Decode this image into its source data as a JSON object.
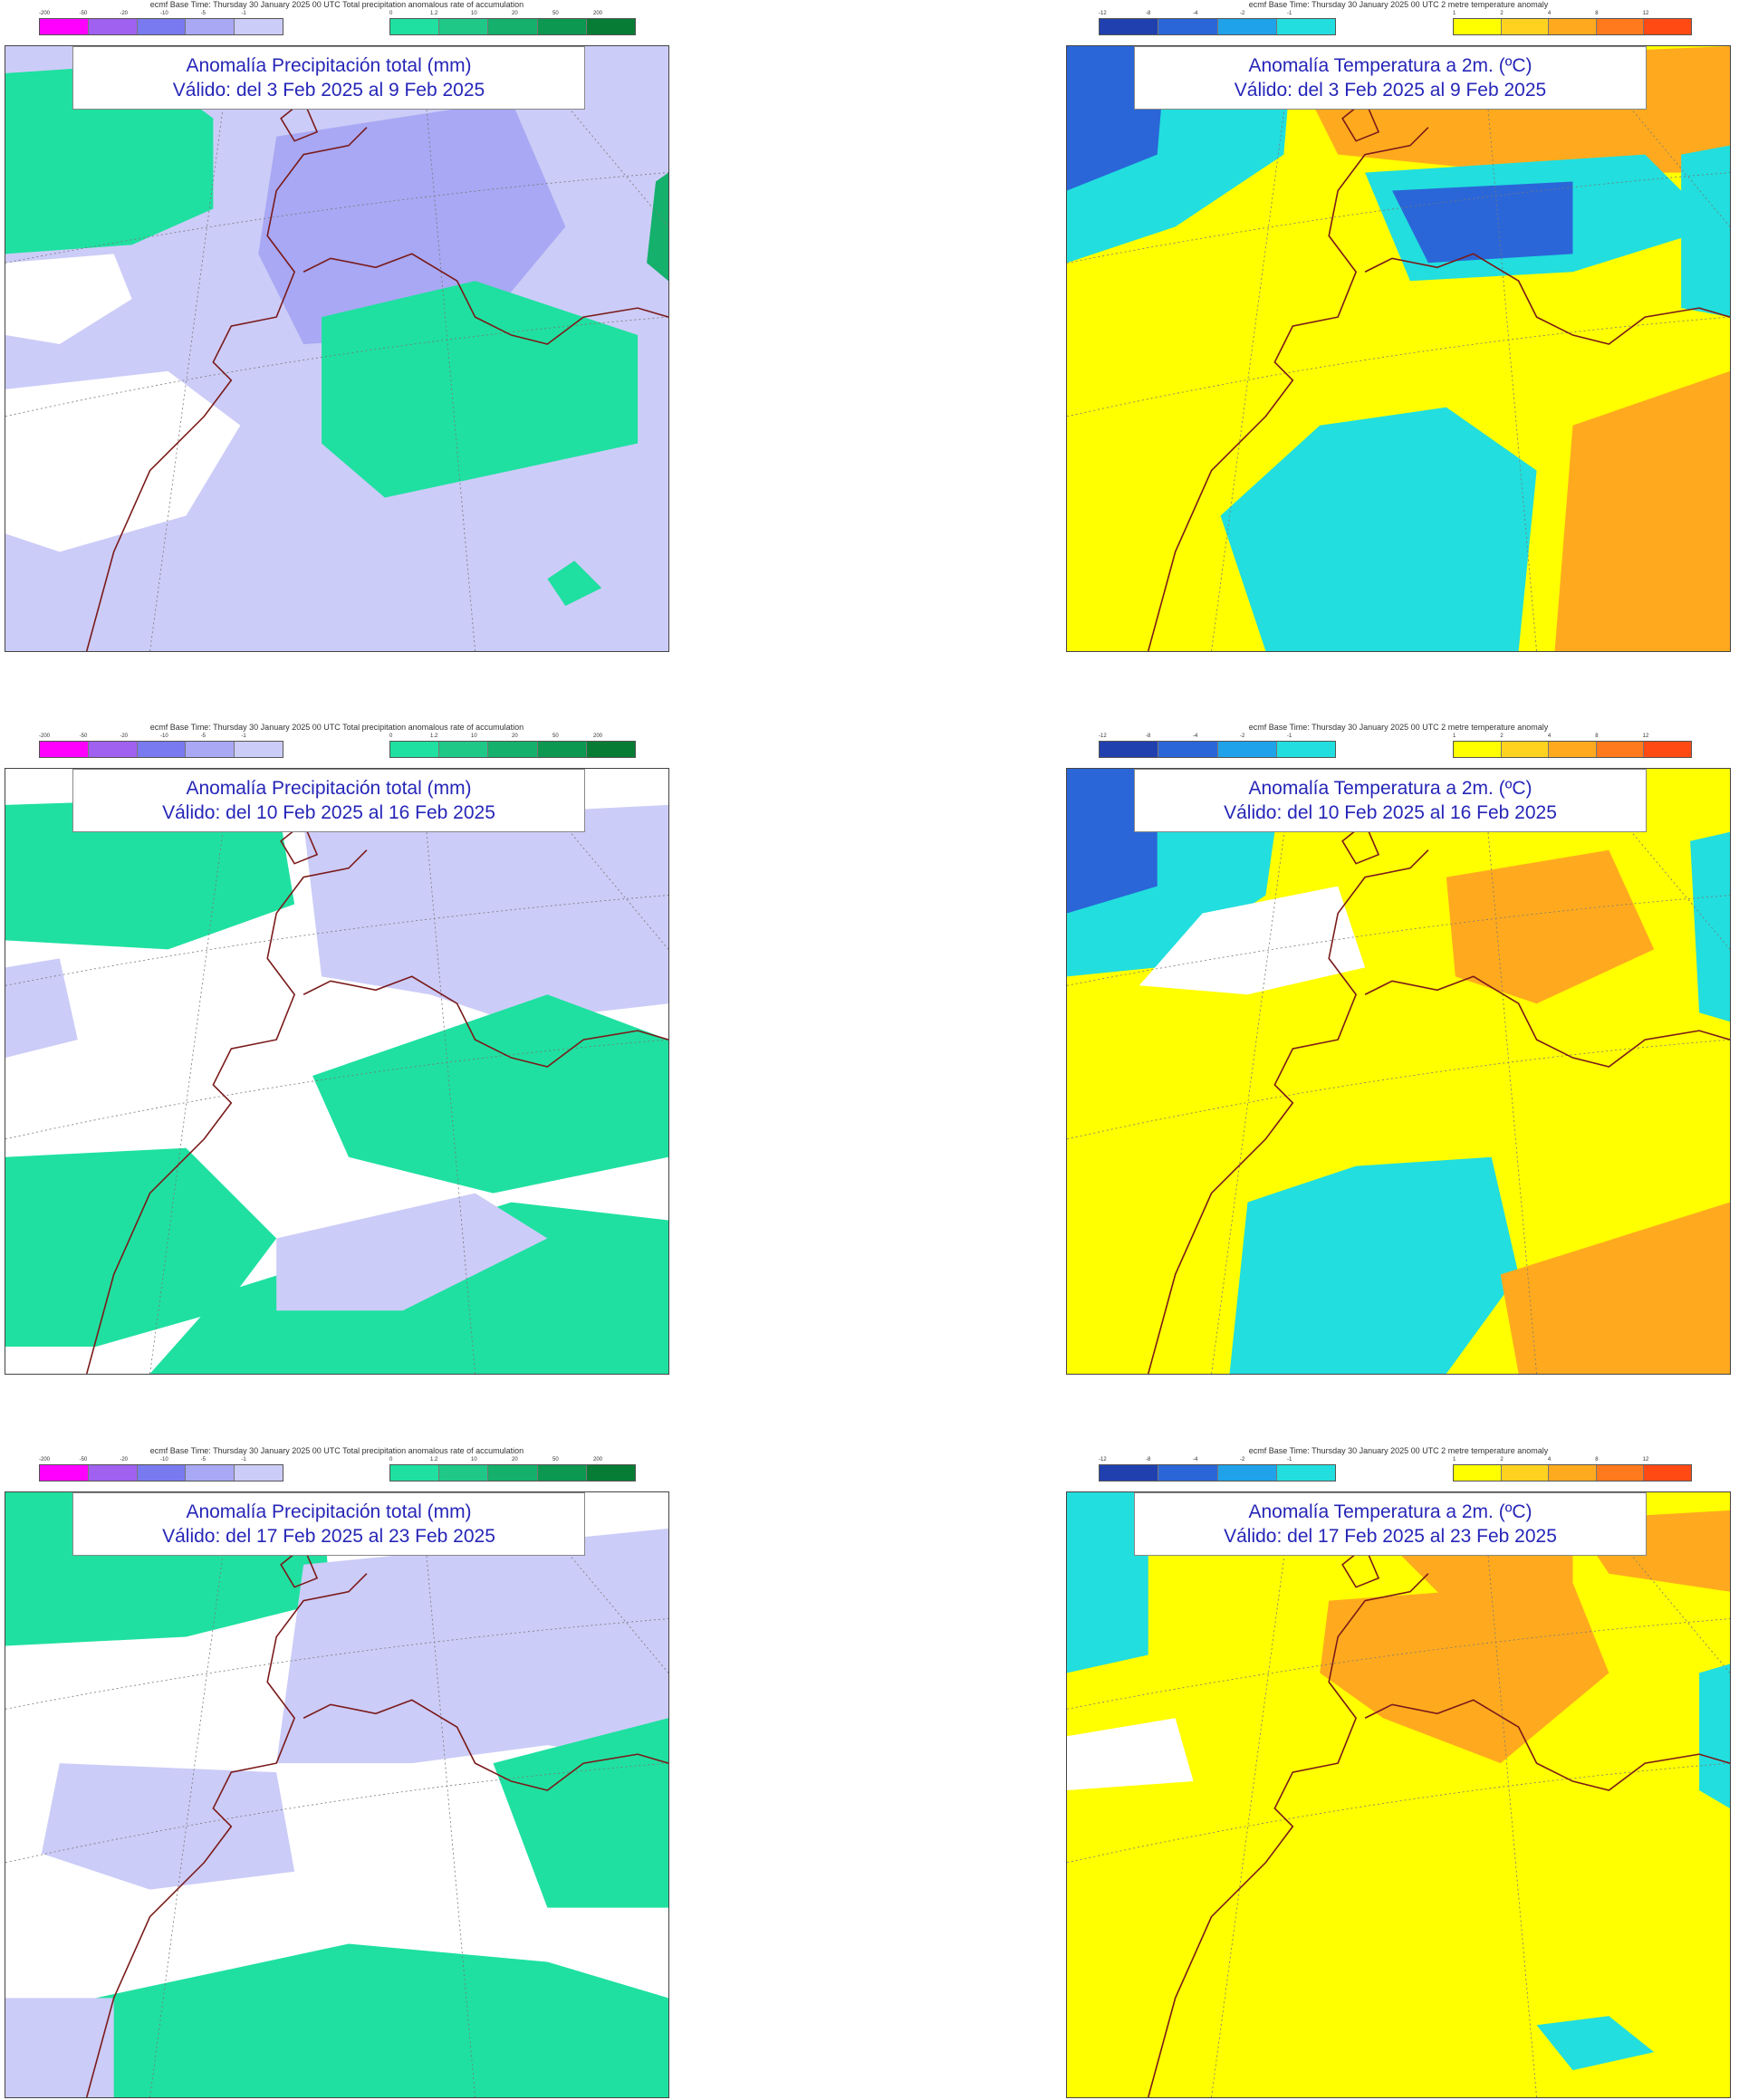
{
  "panels": [
    {
      "id": "precip-1",
      "kind": "precip",
      "base_time": "ecmf Base Time: Thursday 30 January 2025 00 UTC Total precipitation anomalous rate of accumulation",
      "title_line1": "Anomalía Precipitación total (mm)",
      "title_line2": "Válido: del 3 Feb 2025 al 9 Feb 2025"
    },
    {
      "id": "temp-1",
      "kind": "temp",
      "base_time": "ecmf Base Time: Thursday 30 January 2025 00 UTC 2 metre temperature anomaly",
      "title_line1": "Anomalía Temperatura a 2m. (ºC)",
      "title_line2": "Válido: del 3 Feb 2025 al 9 Feb 2025"
    },
    {
      "id": "precip-2",
      "kind": "precip",
      "base_time": "ecmf Base Time: Thursday 30 January 2025 00 UTC Total precipitation anomalous rate of accumulation",
      "title_line1": "Anomalía Precipitación total (mm)",
      "title_line2": "Válido: del 10 Feb 2025 al 16 Feb 2025"
    },
    {
      "id": "temp-2",
      "kind": "temp",
      "base_time": "ecmf Base Time: Thursday 30 January 2025 00 UTC 2 metre temperature anomaly",
      "title_line1": "Anomalía Temperatura a 2m. (ºC)",
      "title_line2": "Válido: del 10 Feb 2025 al 16 Feb 2025"
    },
    {
      "id": "precip-3",
      "kind": "precip",
      "base_time": "ecmf Base Time: Thursday 30 January 2025 00 UTC Total precipitation anomalous rate of accumulation",
      "title_line1": "Anomalía Precipitación total (mm)",
      "title_line2": "Válido: del 17 Feb 2025 al 23 Feb 2025"
    },
    {
      "id": "temp-3",
      "kind": "temp",
      "base_time": "ecmf Base Time: Thursday 30 January 2025 00 UTC 2 metre temperature anomaly",
      "title_line1": "Anomalía Temperatura a 2m. (ºC)",
      "title_line2": "Válido: del 17 Feb 2025 al 23 Feb 2025"
    }
  ],
  "legends": {
    "precip": {
      "dry_colors": [
        "#ff00ff",
        "#a060f0",
        "#7a7af0",
        "#a8a8f4",
        "#ccccf8"
      ],
      "dry_ticks": [
        "-200",
        "-50",
        "-20",
        "-10",
        "-5",
        "-1"
      ],
      "wet_colors": [
        "#1fe0a0",
        "#20c888",
        "#14b06c",
        "#0c9850",
        "#067c34"
      ],
      "wet_ticks": [
        "0",
        "1.2",
        "10",
        "20",
        "50",
        "200"
      ]
    },
    "temp": {
      "cold_colors": [
        "#2040b0",
        "#2a66d8",
        "#1fa2ea",
        "#22dede"
      ],
      "cold_ticks": [
        "-12",
        "-8",
        "-4",
        "-2",
        "-1"
      ],
      "warm_colors": [
        "#ffff00",
        "#ffd21f",
        "#ffaa1e",
        "#ff7a1c",
        "#ff4a14"
      ],
      "warm_ticks": [
        "1",
        "2",
        "4",
        "8",
        "12"
      ]
    }
  },
  "colors": {
    "title_text": "#2626b8",
    "coastline": "#7a1a1a",
    "precip_none": "#ffffff",
    "precip_dry": "#ccccf8",
    "precip_dry_strong": "#a8a8f4",
    "precip_wet": "#1fe0a0",
    "precip_wet_strong": "#14b06c",
    "temp_none": "#ffffff",
    "temp_warm": "#ffff00",
    "temp_warmer": "#ffaa1e",
    "temp_cool": "#22dede",
    "temp_cold": "#2a66d8"
  }
}
